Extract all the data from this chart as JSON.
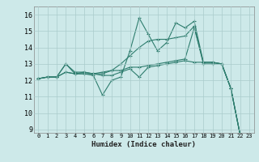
{
  "xlabel": "Humidex (Indice chaleur)",
  "xlim": [
    -0.5,
    23.5
  ],
  "ylim": [
    8.8,
    16.5
  ],
  "yticks": [
    9,
    10,
    11,
    12,
    13,
    14,
    15,
    16
  ],
  "xticks": [
    0,
    1,
    2,
    3,
    4,
    5,
    6,
    7,
    8,
    9,
    10,
    11,
    12,
    13,
    14,
    15,
    16,
    17,
    18,
    19,
    20,
    21,
    22,
    23
  ],
  "bg_color": "#cde9e9",
  "grid_color": "#aacccc",
  "line_color": "#2e7d6e",
  "series": [
    [
      12.1,
      12.2,
      12.2,
      13.0,
      12.4,
      12.4,
      12.3,
      11.1,
      12.0,
      12.2,
      13.8,
      15.8,
      14.8,
      13.8,
      14.3,
      15.5,
      15.2,
      15.6,
      13.1,
      13.1,
      13.0,
      11.5,
      8.7
    ],
    [
      12.1,
      12.2,
      12.2,
      12.5,
      12.4,
      12.4,
      12.4,
      12.3,
      12.3,
      12.5,
      12.7,
      12.2,
      12.8,
      12.9,
      13.0,
      13.1,
      13.2,
      13.1,
      13.1,
      13.1,
      13.0,
      11.5,
      8.7
    ],
    [
      12.1,
      12.2,
      12.2,
      12.5,
      12.4,
      12.5,
      12.4,
      12.4,
      12.6,
      13.0,
      13.5,
      14.0,
      14.4,
      14.5,
      14.5,
      14.6,
      14.7,
      15.3,
      13.0,
      13.0,
      13.0,
      11.5,
      8.7
    ],
    [
      12.1,
      12.2,
      12.2,
      13.0,
      12.5,
      12.5,
      12.4,
      12.5,
      12.6,
      12.6,
      12.8,
      12.8,
      12.9,
      13.0,
      13.1,
      13.2,
      13.3,
      15.2,
      13.1,
      13.1,
      13.0,
      11.5,
      8.7
    ]
  ],
  "x_series": [
    0,
    1,
    2,
    3,
    4,
    5,
    6,
    7,
    8,
    9,
    10,
    11,
    12,
    13,
    14,
    15,
    16,
    17,
    18,
    19,
    20,
    21,
    22
  ]
}
